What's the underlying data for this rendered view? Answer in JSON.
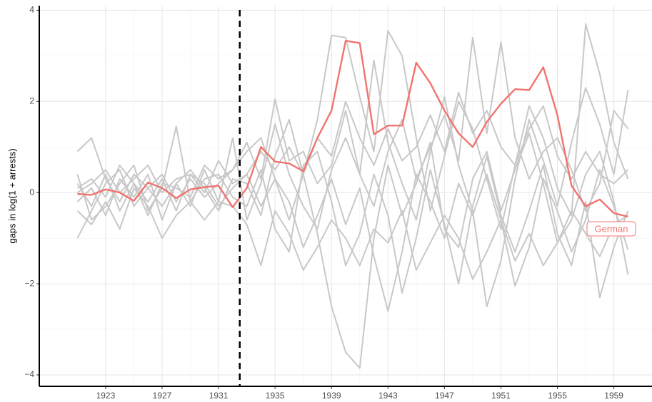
{
  "chart_data": {
    "type": "line",
    "y_label": "gaps in log(1 + arrests)",
    "x": [
      1921,
      1922,
      1923,
      1924,
      1925,
      1926,
      1927,
      1928,
      1929,
      1930,
      1931,
      1932,
      1933,
      1934,
      1935,
      1936,
      1937,
      1938,
      1939,
      1940,
      1941,
      1942,
      1943,
      1944,
      1945,
      1946,
      1947,
      1948,
      1949,
      1950,
      1951,
      1952,
      1953,
      1954,
      1955,
      1956,
      1957,
      1958,
      1959,
      1960
    ],
    "xlim": [
      1918.3,
      1961.7
    ],
    "xticks": [
      1923,
      1927,
      1931,
      1935,
      1939,
      1943,
      1947,
      1951,
      1955,
      1959
    ],
    "ylim": [
      -4.25,
      4.1
    ],
    "yticks": [
      {
        "value": -4,
        "label": "−4"
      },
      {
        "value": -2,
        "label": "−2"
      },
      0,
      2,
      4
    ],
    "grid": true,
    "treatment_x": 1932.5,
    "series": [
      {
        "color": "#c8c8c8",
        "values": [
          0.9,
          1.2,
          0.3,
          -0.2,
          0.4,
          0.1,
          -0.3,
          0.2,
          0.5,
          0.1,
          -0.4,
          0.3,
          0.2,
          -0.5,
          0.8,
          1.6,
          0.4,
          -0.9,
          -2.5,
          -3.5,
          -3.85,
          -1.0,
          0.6,
          -0.5,
          0.2,
          1.1,
          -0.8,
          -1.2,
          0.3,
          0.9,
          -0.4,
          0.5,
          1.3,
          0.2,
          -1.1,
          -0.6,
          0.4,
          0.9,
          -0.2,
          -1.8
        ]
      },
      {
        "color": "#c8c8c8",
        "values": [
          -1.0,
          -0.4,
          0.2,
          0.5,
          -0.3,
          0.1,
          0.4,
          -0.2,
          0.3,
          -0.1,
          0.2,
          0.5,
          0.9,
          1.2,
          0.3,
          -0.6,
          0.4,
          1.6,
          3.45,
          3.4,
          2.1,
          0.9,
          3.55,
          3.0,
          1.2,
          -0.4,
          0.8,
          2.0,
          1.4,
          0.3,
          -0.8,
          0.6,
          1.9,
          1.2,
          0.1,
          -0.5,
          3.7,
          2.6,
          1.1,
          0.3
        ]
      },
      {
        "color": "#c8c8c8",
        "values": [
          0.4,
          -0.6,
          -0.3,
          0.2,
          0.6,
          -0.4,
          0.1,
          1.45,
          -0.2,
          0.3,
          0.4,
          -0.1,
          -0.3,
          0.5,
          -0.8,
          -1.3,
          0.6,
          0.9,
          -0.2,
          -1.6,
          -0.9,
          0.4,
          -0.5,
          -2.2,
          -1.0,
          0.5,
          -0.7,
          -2.0,
          -0.3,
          0.8,
          -0.5,
          -1.3,
          -0.4,
          0.6,
          -0.9,
          -1.6,
          -0.2,
          -2.3,
          -1.2,
          -0.4
        ]
      },
      {
        "color": "#c8c8c8",
        "values": [
          -0.2,
          0.1,
          -0.5,
          0.3,
          -0.1,
          0.4,
          -0.6,
          0.2,
          -0.3,
          0.5,
          -0.2,
          1.2,
          -0.6,
          0.2,
          1.5,
          0.4,
          -0.3,
          -0.8,
          0.5,
          1.2,
          0.4,
          2.9,
          1.1,
          0.2,
          -0.6,
          0.9,
          2.1,
          0.6,
          -0.4,
          -2.5,
          -1.5,
          0.3,
          1.6,
          0.7,
          -0.3,
          1.1,
          2.3,
          1.5,
          0.4,
          2.25
        ]
      },
      {
        "color": "#c8c8c8",
        "values": [
          0.2,
          -0.3,
          0.4,
          -0.4,
          0.2,
          -0.2,
          0.3,
          -0.4,
          0.4,
          0.2,
          -0.3,
          0.1,
          0.4,
          -0.3,
          0.3,
          -0.2,
          -1.2,
          -0.5,
          0.3,
          -0.7,
          0.1,
          -1.4,
          -2.6,
          -1.3,
          0.4,
          -0.2,
          -1.0,
          0.2,
          -0.5,
          0.4,
          -0.6,
          -2.05,
          -1.2,
          0.3,
          -0.4,
          -1.3,
          -0.6,
          0.5,
          -0.3,
          -1.25
        ]
      },
      {
        "color": "#c8c8c8",
        "values": [
          0.1,
          0.3,
          -0.1,
          0.6,
          0.2,
          -0.5,
          0.2,
          0.1,
          -0.1,
          0.6,
          0.3,
          0.5,
          1.1,
          0.3,
          2.05,
          0.7,
          0.9,
          0.2,
          0.6,
          1.8,
          0.4,
          -0.3,
          0.9,
          1.6,
          0.3,
          1.0,
          1.7,
          0.7,
          3.4,
          1.3,
          3.3,
          1.2,
          0.3,
          0.9,
          1.2,
          0.5,
          -0.4,
          0.2,
          1.8,
          1.4
        ]
      },
      {
        "color": "#c8c8c8",
        "values": [
          -0.4,
          -0.7,
          -0.2,
          -0.8,
          0.1,
          -0.3,
          -1.0,
          -0.5,
          -0.2,
          -0.6,
          -0.2,
          -0.3,
          -0.7,
          -1.6,
          -0.4,
          -0.9,
          -1.7,
          -1.2,
          -0.6,
          -1.0,
          -1.6,
          -0.8,
          -1.1,
          -0.4,
          -1.7,
          -1.1,
          -0.5,
          -1.0,
          -1.9,
          -1.3,
          -0.6,
          -1.5,
          -0.9,
          -1.6,
          -1.1,
          -0.4,
          -0.9,
          -1.4,
          -0.7,
          -0.5
        ]
      },
      {
        "color": "#c8c8c8",
        "values": [
          0.0,
          0.2,
          0.5,
          0.0,
          0.3,
          0.6,
          0.0,
          0.3,
          0.4,
          0.0,
          0.7,
          0.2,
          0.4,
          0.9,
          0.5,
          1.0,
          0.4,
          1.2,
          0.8,
          2.0,
          1.2,
          0.6,
          1.4,
          0.7,
          1.0,
          1.7,
          0.9,
          2.2,
          1.3,
          1.8,
          1.0,
          0.6,
          1.4,
          1.9,
          0.8,
          0.3,
          0.9,
          0.4,
          0.2,
          0.5
        ]
      },
      {
        "name": "German",
        "color": "#f07470",
        "values": [
          -0.03,
          -0.05,
          0.07,
          0.0,
          -0.18,
          0.22,
          0.1,
          -0.12,
          0.07,
          0.12,
          0.15,
          -0.32,
          0.1,
          1.0,
          0.68,
          0.64,
          0.47,
          1.2,
          1.8,
          3.33,
          3.28,
          1.28,
          1.47,
          1.47,
          2.85,
          2.4,
          1.8,
          1.3,
          1.0,
          1.55,
          1.95,
          2.27,
          2.25,
          2.75,
          1.7,
          0.15,
          -0.3,
          -0.15,
          -0.45,
          -0.53
        ]
      }
    ]
  }
}
